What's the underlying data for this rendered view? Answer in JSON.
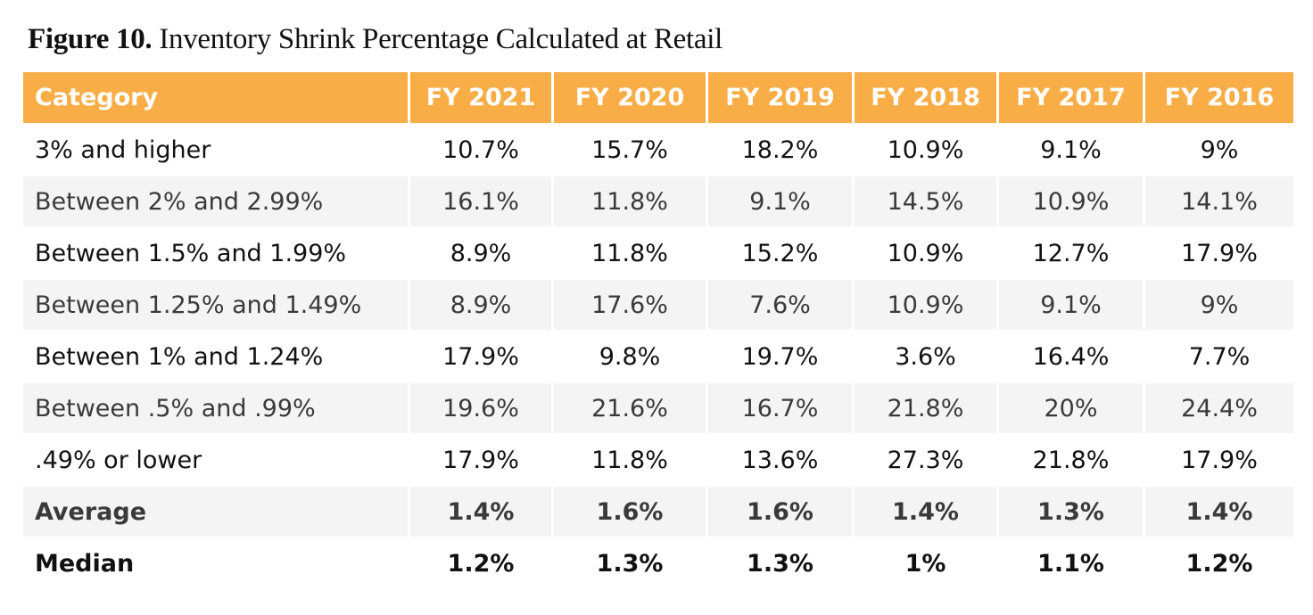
{
  "title": {
    "figure": "Figure 10.",
    "text": "Inventory Shrink Percentage Calculated at Retail"
  },
  "colors": {
    "header": "#f9ad47",
    "alt_row": "#f4f4f4"
  },
  "chart_data": {
    "type": "table",
    "columns": [
      "Category",
      "FY 2021",
      "FY 2020",
      "FY 2019",
      "FY 2018",
      "FY 2017",
      "FY 2016"
    ],
    "rows": [
      [
        "3% and higher",
        "10.7%",
        "15.7%",
        "18.2%",
        "10.9%",
        "9.1%",
        "9%"
      ],
      [
        "Between 2% and 2.99%",
        "16.1%",
        "11.8%",
        "9.1%",
        "14.5%",
        "10.9%",
        "14.1%"
      ],
      [
        "Between 1.5% and 1.99%",
        "8.9%",
        "11.8%",
        "15.2%",
        "10.9%",
        "12.7%",
        "17.9%"
      ],
      [
        "Between 1.25% and 1.49%",
        "8.9%",
        "17.6%",
        "7.6%",
        "10.9%",
        "9.1%",
        "9%"
      ],
      [
        "Between 1% and 1.24%",
        "17.9%",
        "9.8%",
        "19.7%",
        "3.6%",
        "16.4%",
        "7.7%"
      ],
      [
        "Between .5% and .99%",
        "19.6%",
        "21.6%",
        "16.7%",
        "21.8%",
        "20%",
        "24.4%"
      ],
      [
        ".49% or lower",
        "17.9%",
        "11.8%",
        "13.6%",
        "27.3%",
        "21.8%",
        "17.9%"
      ],
      [
        "Average",
        "1.4%",
        "1.6%",
        "1.6%",
        "1.4%",
        "1.3%",
        "1.4%"
      ],
      [
        "Median",
        "1.2%",
        "1.3%",
        "1.3%",
        "1%",
        "1.1%",
        "1.2%"
      ]
    ]
  }
}
